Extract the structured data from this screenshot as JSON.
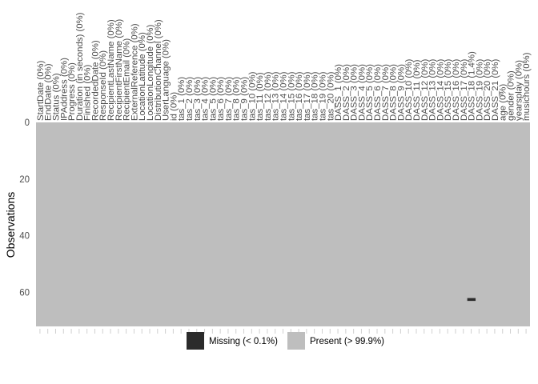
{
  "chart_data": {
    "type": "heatmap",
    "ylabel": "Observations",
    "y_ticks": [
      "0",
      "20",
      "40",
      "60"
    ],
    "y_tick_values": [
      0,
      20,
      40,
      60
    ],
    "n_observations": 72,
    "columns": [
      "StartDate (0%)",
      "EndDate (0%)",
      "Status (0%)",
      "IPAddress (0%)",
      "Progress (0%)",
      "Duration (in seconds) (0%)",
      "Finished (0%)",
      "RecordedDate (0%)",
      "ResponseId (0%)",
      "RecipientLastName (0%)",
      "RecipientFirstName (0%)",
      "RecipientEmail (0%)",
      "ExternalReference (0%)",
      "LocationLatitude (0%)",
      "LocationLongitude (0%)",
      "DistributionChannel (0%)",
      "UserLanguage (0%)",
      "id (0%)",
      "tas_1 (0%)",
      "tas_2 (0%)",
      "tas_3 (0%)",
      "tas_4 (0%)",
      "tas_5 (0%)",
      "tas_6 (0%)",
      "tas_7 (0%)",
      "tas_8 (0%)",
      "tas_9 (0%)",
      "tas_10 (0%)",
      "tas_11 (0%)",
      "tas_12 (0%)",
      "tas_13 (0%)",
      "tas_14 (0%)",
      "tas_15 (0%)",
      "tas_16 (0%)",
      "tas_17 (0%)",
      "tas_18 (0%)",
      "tas_19 (0%)",
      "tas_20 (0%)",
      "DASS_1 (0%)",
      "DASS_2 (0%)",
      "DASS_3 (0%)",
      "DASS_4 (0%)",
      "DASS_5 (0%)",
      "DASS_6 (0%)",
      "DASS_7 (0%)",
      "DASS_8 (0%)",
      "DASS_9 (0%)",
      "DASS_10 (0%)",
      "DASS_11 (0%)",
      "DASS_12 (0%)",
      "DASS_13 (0%)",
      "DASS_14 (0%)",
      "DASS_15 (0%)",
      "DASS_16 (0%)",
      "DASS_17 (0%)",
      "DASS_18 (1.4%)",
      "DASS_19 (0%)",
      "DASS_20 (0%)",
      "DASS_21 (0%)",
      "age (0%)",
      "gender (0%)",
      "yearsplay (0%)",
      "musichours (0%)"
    ],
    "missing": [
      {
        "column": "DASS_18 (1.4%)",
        "observation": 62
      }
    ],
    "legend": [
      {
        "label": "Missing (< 0.1%)",
        "color": "#2b2b2b"
      },
      {
        "label": "Present (> 99.9%)",
        "color": "#bebebe"
      }
    ],
    "legend_position": "bottom",
    "grid": false,
    "colors": {
      "present": "#bebebe",
      "missing": "#2b2b2b"
    }
  }
}
